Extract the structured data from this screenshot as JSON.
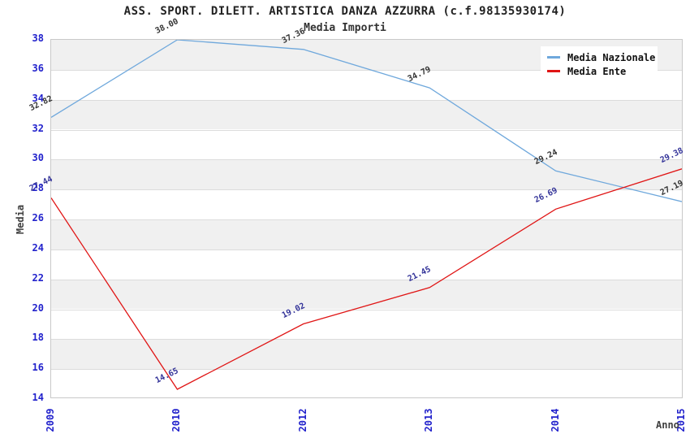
{
  "header": {
    "title": "ASS. SPORT. DILETT. ARTISTICA DANZA AZZURRA (c.f.98135930174)",
    "subtitle": "Media Importi"
  },
  "axes": {
    "y_label": "Media",
    "x_label": "Anno"
  },
  "legend": {
    "items": [
      {
        "label": "Media Nazionale",
        "color": "#6fa8dc"
      },
      {
        "label": "Media Ente",
        "color": "#e01515"
      }
    ]
  },
  "chart_data": {
    "type": "line",
    "title": "ASS. SPORT. DILETT. ARTISTICA DANZA AZZURRA (c.f.98135930174)",
    "subtitle": "Media Importi",
    "xlabel": "Anno",
    "ylabel": "Media",
    "categories": [
      "2009",
      "2010",
      "2012",
      "2013",
      "2014",
      "2015"
    ],
    "series": [
      {
        "name": "Media Nazionale",
        "color": "#6fa8dc",
        "label_color": "#333333",
        "values": [
          32.82,
          38.0,
          37.36,
          34.79,
          29.24,
          27.19
        ]
      },
      {
        "name": "Media Ente",
        "color": "#e01515",
        "label_color": "#333399",
        "values": [
          27.44,
          14.65,
          19.02,
          21.45,
          26.69,
          29.38
        ]
      }
    ],
    "ylim": [
      14,
      38
    ],
    "ytick_step": 2,
    "grid": "horizontal",
    "band_colors": [
      "#f0f0f0",
      "#ffffff"
    ],
    "tick_label_color": "#2222cc",
    "legend_position": "top-right"
  }
}
